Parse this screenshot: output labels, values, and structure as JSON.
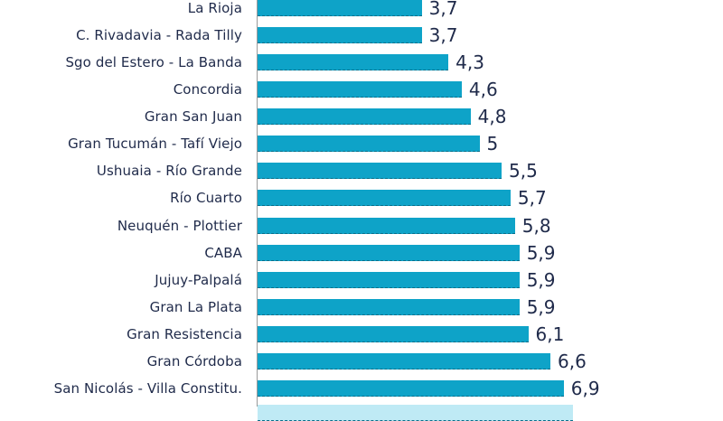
{
  "chart_data": {
    "type": "bar",
    "orientation": "horizontal",
    "title": "",
    "xlabel": "",
    "ylabel": "",
    "categories": [
      "La Rioja",
      "C. Rivadavia - Rada Tilly",
      "Sgo del Estero - La Banda",
      "Concordia",
      "Gran San Juan",
      "Gran Tucumán - Tafí Viejo",
      "Ushuaia - Río Grande",
      "Río Cuarto",
      "Neuquén - Plottier",
      "CABA",
      "Jujuy-Palpalá",
      "Gran La Plata",
      "Gran Resistencia",
      "Gran Córdoba",
      "San Nicolás - Villa Constitu."
    ],
    "values": [
      3.7,
      3.7,
      4.3,
      4.6,
      4.8,
      5.0,
      5.5,
      5.7,
      5.8,
      5.9,
      5.9,
      5.9,
      6.1,
      6.6,
      6.9
    ],
    "value_labels": [
      "3,7",
      "3,7",
      "4,3",
      "4,6",
      "4,8",
      "5",
      "5,5",
      "5,7",
      "5,8",
      "5,9",
      "5,9",
      "5,9",
      "6,1",
      "6,6",
      "6,9"
    ],
    "bar_color": "#0ea3c8",
    "grid": false,
    "legend": "none"
  }
}
